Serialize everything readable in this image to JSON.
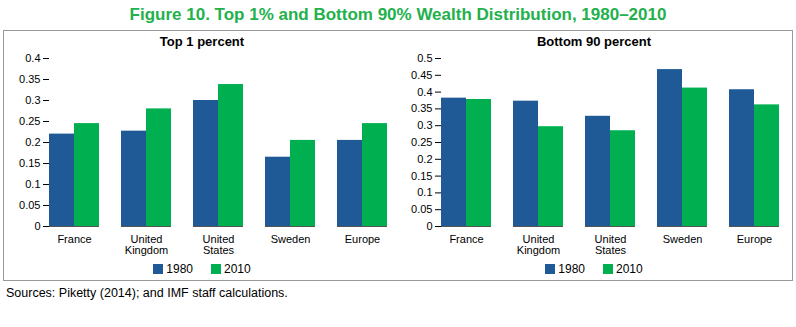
{
  "title": "Figure 10. Top 1% and Bottom 90% Wealth Distribution, 1980–2010",
  "source": "Sources: Piketty (2014); and IMF staff calculations.",
  "chart_data": [
    {
      "type": "bar",
      "title": "Top 1 percent",
      "categories": [
        "France",
        "United Kingdom",
        "United States",
        "Sweden",
        "Europe"
      ],
      "series": [
        {
          "name": "1980",
          "color": "#1f5a96",
          "values": [
            0.22,
            0.227,
            0.3,
            0.165,
            0.205
          ]
        },
        {
          "name": "2010",
          "color": "#00b050",
          "values": [
            0.245,
            0.28,
            0.338,
            0.205,
            0.245
          ]
        }
      ],
      "ylim": [
        0,
        0.4
      ],
      "yticks": [
        0,
        0.05,
        0.1,
        0.15,
        0.2,
        0.25,
        0.3,
        0.35,
        0.4
      ],
      "grid": false,
      "legend": "bottom"
    },
    {
      "type": "bar",
      "title": "Bottom 90 percent",
      "categories": [
        "France",
        "United Kingdom",
        "United States",
        "Sweden",
        "Europe"
      ],
      "series": [
        {
          "name": "1980",
          "color": "#1f5a96",
          "values": [
            0.382,
            0.373,
            0.328,
            0.467,
            0.407
          ]
        },
        {
          "name": "2010",
          "color": "#00b050",
          "values": [
            0.378,
            0.297,
            0.285,
            0.412,
            0.362
          ]
        }
      ],
      "ylim": [
        0,
        0.5
      ],
      "yticks": [
        0,
        0.05,
        0.1,
        0.15,
        0.2,
        0.25,
        0.3,
        0.35,
        0.4,
        0.45,
        0.5
      ],
      "grid": false,
      "legend": "bottom"
    }
  ]
}
